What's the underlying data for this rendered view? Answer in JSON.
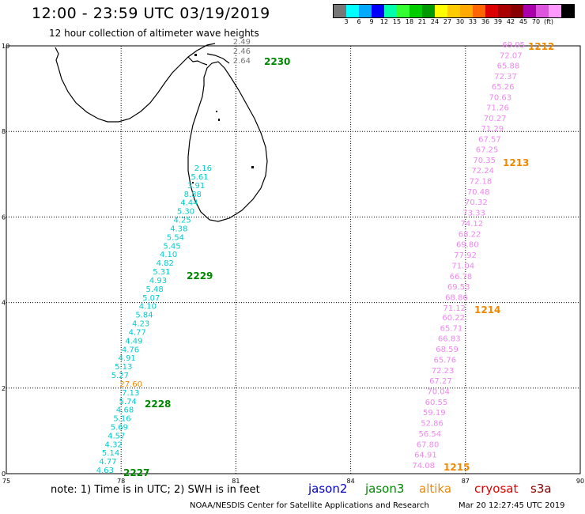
{
  "header": {
    "title": "12:00 - 23:59 UTC 03/19/2019",
    "subtitle": "12 hour collection of altimeter wave heights"
  },
  "legend": {
    "unit": "(ft)",
    "colors": [
      "#777777",
      "#00ffff",
      "#00aaff",
      "#0000ff",
      "#00ffaa",
      "#33ff33",
      "#00cc00",
      "#009900",
      "#ffff00",
      "#ffcc00",
      "#ffaa00",
      "#ff6600",
      "#dd0000",
      "#aa0000",
      "#880000",
      "#aa00aa",
      "#dd55dd",
      "#ff99ff",
      "#000000"
    ],
    "labels": [
      "3",
      "6",
      "9",
      "12",
      "15",
      "18",
      "21",
      "24",
      "27",
      "30",
      "33",
      "36",
      "39",
      "42",
      "45",
      "70"
    ]
  },
  "axes": {
    "x_ticks": [
      "75",
      "78",
      "81",
      "84",
      "87",
      "90"
    ],
    "y_ticks": [
      "0",
      "2",
      "4",
      "6",
      "8",
      "10"
    ]
  },
  "tracks": [
    {
      "id": "2230",
      "color": "#008800",
      "value_color": "#777777",
      "values": [
        "2.49",
        "2.46",
        "2.64"
      ]
    },
    {
      "id": "2229",
      "color": "#008800",
      "value_color": "#00cccc",
      "values": [
        "2.16",
        "5.61",
        "3.91",
        "8.88",
        "4.44",
        "5.30",
        "4.25",
        "4.38",
        "5.54",
        "5.45",
        "4.10",
        "4.82",
        "5.31",
        "4.93",
        "5.48",
        "5.07",
        "4.10",
        "5.84",
        "4.23",
        "4.77",
        "4.49",
        "4.76",
        "4.91",
        "5.13",
        "5.27"
      ]
    },
    {
      "id": "2228",
      "color": "#008800",
      "value_color": "#00cccc",
      "values": [
        "27.60",
        "7.13",
        "5.74",
        "4.68",
        "5.16",
        "5.69",
        "4.57",
        "4.32",
        "5.14",
        "4.77",
        "4.63"
      ]
    },
    {
      "id": "2227",
      "color": "#008800"
    },
    {
      "id": "1212",
      "color": "#ee8800",
      "value_color": "#ee88ee",
      "values": [
        "69.05",
        "72.07",
        "65.88",
        "72.37",
        "65.26",
        "70.63",
        "71.26",
        "70.27",
        "71.29",
        "67.57",
        "67.25",
        "70.35"
      ]
    },
    {
      "id": "1213",
      "color": "#ee8800",
      "value_color": "#ee88ee",
      "values": [
        "72.24",
        "72.18",
        "70.48",
        "70.32",
        "73.33",
        "74.12",
        "68.22",
        "69.80",
        "77.92",
        "71.04",
        "66.78",
        "69.53",
        "68.86",
        "71.12"
      ]
    },
    {
      "id": "1214",
      "color": "#ee8800",
      "value_color": "#ee88ee",
      "values": [
        "60.22",
        "65.71",
        "66.83",
        "68.59",
        "65.76",
        "72.23",
        "67.27",
        "70.04",
        "60.55",
        "59.19",
        "52.86",
        "56.54",
        "67.80",
        "64.91",
        "74.08"
      ]
    },
    {
      "id": "1215",
      "color": "#ee8800"
    }
  ],
  "note": "note: 1) Time is in UTC; 2) SWH is in feet",
  "satellites": [
    {
      "name": "jason2",
      "color": "#0000cc"
    },
    {
      "name": "jason3",
      "color": "#008800"
    },
    {
      "name": "altika",
      "color": "#ee8800"
    },
    {
      "name": "cryosat",
      "color": "#dd0000"
    },
    {
      "name": "s3a",
      "color": "#880000"
    }
  ],
  "footer": {
    "credit": "NOAA/NESDIS Center for Satellite Applications and Research",
    "timestamp": "Mar 20 12:27:45 UTC 2019"
  }
}
